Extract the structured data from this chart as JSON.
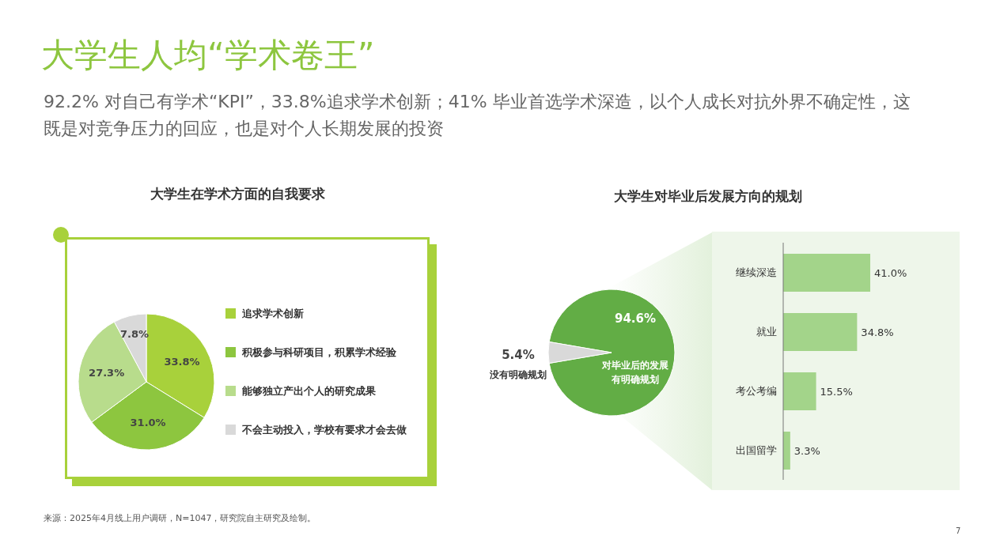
{
  "chart_data": [
    {
      "type": "other",
      "title": "大学生人均“学术卷王”",
      "subtitle": "92.2% 对自己有学术“KPI”，33.8%追求学术创新；41% 毕业首选学术深造，以个人成长对抗外界不确定性，这既是对竞争压力的回应，也是对个人长期发展的投资",
      "annotations": [
        "来源：2025年4月线上用户调研，N=1047，研究院自主研究及绘制。",
        "7"
      ]
    },
    {
      "type": "pie",
      "title": "大学生在学术方面的自我要求",
      "categories": [
        "追求学术创新",
        "积极参与科研项目，积累学术经验",
        "能够独立产出个人的研究成果",
        "不会主动投入，学校有要求才会去做"
      ],
      "values": [
        33.8,
        31.0,
        27.3,
        7.8
      ],
      "colors": [
        "#a8d13b",
        "#8dc63f",
        "#b8dc8c",
        "#d9d9d9"
      ],
      "value_labels": [
        "33.8%",
        "31.0%",
        "27.3%",
        "7.8%"
      ],
      "legend": "right"
    },
    {
      "type": "pie",
      "title": "大学生对毕业后发展方向的规划",
      "categories": [
        "对毕业后的发展有明确规划",
        "没有明确规划"
      ],
      "values": [
        94.6,
        5.4
      ],
      "colors": [
        "#62ad45",
        "#d9d9d9"
      ],
      "value_labels": [
        "94.6%",
        "5.4%"
      ]
    },
    {
      "type": "bar",
      "orientation": "horizontal",
      "categories": [
        "继续深造",
        "就业",
        "考公考编",
        "出国留学"
      ],
      "values": [
        41.0,
        34.8,
        15.5,
        3.3
      ],
      "color": "#a3d48a",
      "value_labels": [
        "41.0%",
        "34.8%",
        "15.5%",
        "3.3%"
      ]
    }
  ]
}
